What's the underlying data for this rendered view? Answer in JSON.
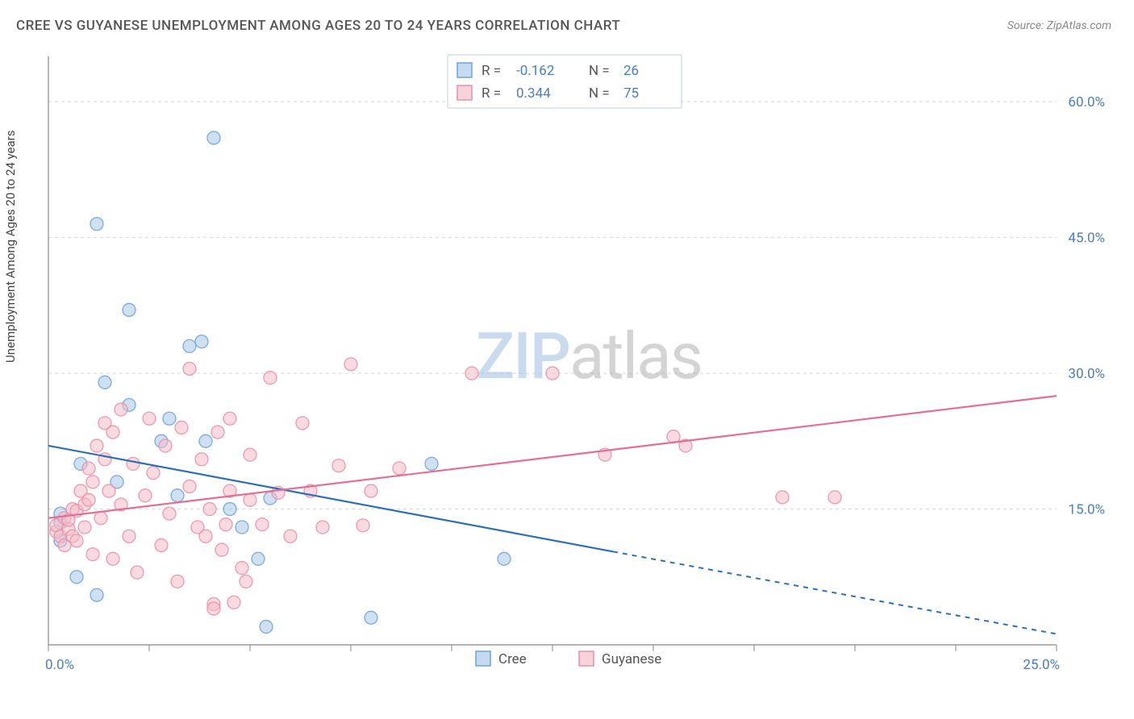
{
  "title": "CREE VS GUYANESE UNEMPLOYMENT AMONG AGES 20 TO 24 YEARS CORRELATION CHART",
  "source": "Source: ZipAtlas.com",
  "ylabel": "Unemployment Among Ages 20 to 24 years",
  "watermark": {
    "part1": "ZIP",
    "part2": "atlas"
  },
  "chart": {
    "type": "scatter",
    "xlim": [
      0,
      25
    ],
    "ylim": [
      0,
      65
    ],
    "xtick_values": [
      0,
      2.5,
      5,
      7.5,
      10,
      12.5,
      15,
      17.5,
      20,
      22.5,
      25
    ],
    "xtick_labels": {
      "0": "0.0%",
      "25": "25.0%"
    },
    "ytick_values": [
      0,
      15,
      30,
      45,
      60
    ],
    "ytick_labels": {
      "15": "15.0%",
      "30": "30.0%",
      "45": "45.0%",
      "60": "60.0%"
    },
    "background_color": "#ffffff",
    "grid_color": "#d8d8d8",
    "marker_radius": 8,
    "marker_opacity": 0.55,
    "series": [
      {
        "name": "Cree",
        "color": "#a6c6e8",
        "stroke": "#6fa3d9",
        "line_color": "#2f6fb5",
        "R": "-0.162",
        "N": "26",
        "regression": {
          "x1": 0,
          "y1": 22,
          "x2": 14,
          "y2": 10.3,
          "extrap_x2": 25,
          "extrap_y2": 1.2
        },
        "points": [
          [
            0.3,
            11.5
          ],
          [
            0.3,
            13.5
          ],
          [
            0.3,
            14.5
          ],
          [
            0.7,
            7.5
          ],
          [
            0.8,
            20
          ],
          [
            1.2,
            46.5
          ],
          [
            1.2,
            5.5
          ],
          [
            1.4,
            29
          ],
          [
            1.7,
            18
          ],
          [
            2.0,
            26.5
          ],
          [
            2.0,
            37
          ],
          [
            2.8,
            22.5
          ],
          [
            3.0,
            25
          ],
          [
            3.2,
            16.5
          ],
          [
            3.5,
            33
          ],
          [
            3.8,
            33.5
          ],
          [
            3.9,
            22.5
          ],
          [
            4.1,
            56
          ],
          [
            4.5,
            15
          ],
          [
            4.8,
            13
          ],
          [
            5.2,
            9.5
          ],
          [
            5.4,
            2
          ],
          [
            5.5,
            16.2
          ],
          [
            8.0,
            3
          ],
          [
            9.5,
            20
          ],
          [
            11.3,
            9.5
          ]
        ]
      },
      {
        "name": "Guyanese",
        "color": "#f4bcc9",
        "stroke": "#e990aa",
        "line_color": "#e56f94",
        "R": "0.344",
        "N": "75",
        "regression": {
          "x1": 0,
          "y1": 14,
          "x2": 25,
          "y2": 27.5
        },
        "points": [
          [
            0.2,
            12.5
          ],
          [
            0.2,
            13.2
          ],
          [
            0.3,
            12
          ],
          [
            0.4,
            11
          ],
          [
            0.4,
            14
          ],
          [
            0.5,
            12.8
          ],
          [
            0.5,
            13.8
          ],
          [
            0.6,
            15
          ],
          [
            0.6,
            12
          ],
          [
            0.7,
            11.5
          ],
          [
            0.7,
            14.8
          ],
          [
            0.8,
            17
          ],
          [
            0.9,
            15.5
          ],
          [
            0.9,
            13
          ],
          [
            1.0,
            19.5
          ],
          [
            1.0,
            16
          ],
          [
            1.1,
            10
          ],
          [
            1.1,
            18
          ],
          [
            1.2,
            22
          ],
          [
            1.3,
            14
          ],
          [
            1.4,
            20.5
          ],
          [
            1.4,
            24.5
          ],
          [
            1.5,
            17
          ],
          [
            1.6,
            9.5
          ],
          [
            1.6,
            23.5
          ],
          [
            1.8,
            15.5
          ],
          [
            1.8,
            26
          ],
          [
            2.0,
            12
          ],
          [
            2.1,
            20
          ],
          [
            2.2,
            8
          ],
          [
            2.4,
            16.5
          ],
          [
            2.5,
            25
          ],
          [
            2.6,
            19
          ],
          [
            2.8,
            11
          ],
          [
            2.9,
            22
          ],
          [
            3.0,
            14.5
          ],
          [
            3.2,
            7
          ],
          [
            3.3,
            24
          ],
          [
            3.5,
            17.5
          ],
          [
            3.5,
            30.5
          ],
          [
            3.7,
            13
          ],
          [
            3.8,
            20.5
          ],
          [
            4.0,
            15
          ],
          [
            4.1,
            4.5
          ],
          [
            4.1,
            4.0
          ],
          [
            4.2,
            23.5
          ],
          [
            4.3,
            10.5
          ],
          [
            4.4,
            13.3
          ],
          [
            4.5,
            17
          ],
          [
            4.5,
            25
          ],
          [
            4.8,
            8.5
          ],
          [
            4.9,
            7
          ],
          [
            5.0,
            21
          ],
          [
            5.0,
            16
          ],
          [
            5.3,
            13.3
          ],
          [
            5.5,
            29.5
          ],
          [
            5.7,
            16.8
          ],
          [
            6.0,
            12
          ],
          [
            6.3,
            24.5
          ],
          [
            6.5,
            17
          ],
          [
            6.8,
            13
          ],
          [
            7.2,
            19.8
          ],
          [
            7.5,
            31
          ],
          [
            7.8,
            13.2
          ],
          [
            8.0,
            17
          ],
          [
            8.7,
            19.5
          ],
          [
            10.5,
            30
          ],
          [
            12.5,
            30
          ],
          [
            13.8,
            21
          ],
          [
            15.5,
            23
          ],
          [
            15.8,
            22
          ],
          [
            18.2,
            16.3
          ],
          [
            19.5,
            16.3
          ],
          [
            4.6,
            4.7
          ],
          [
            3.9,
            12
          ]
        ]
      }
    ],
    "legend_top": {
      "swatch_stroke_width": 1.5
    },
    "legend_bottom": {
      "items": [
        "Cree",
        "Guyanese"
      ]
    }
  }
}
